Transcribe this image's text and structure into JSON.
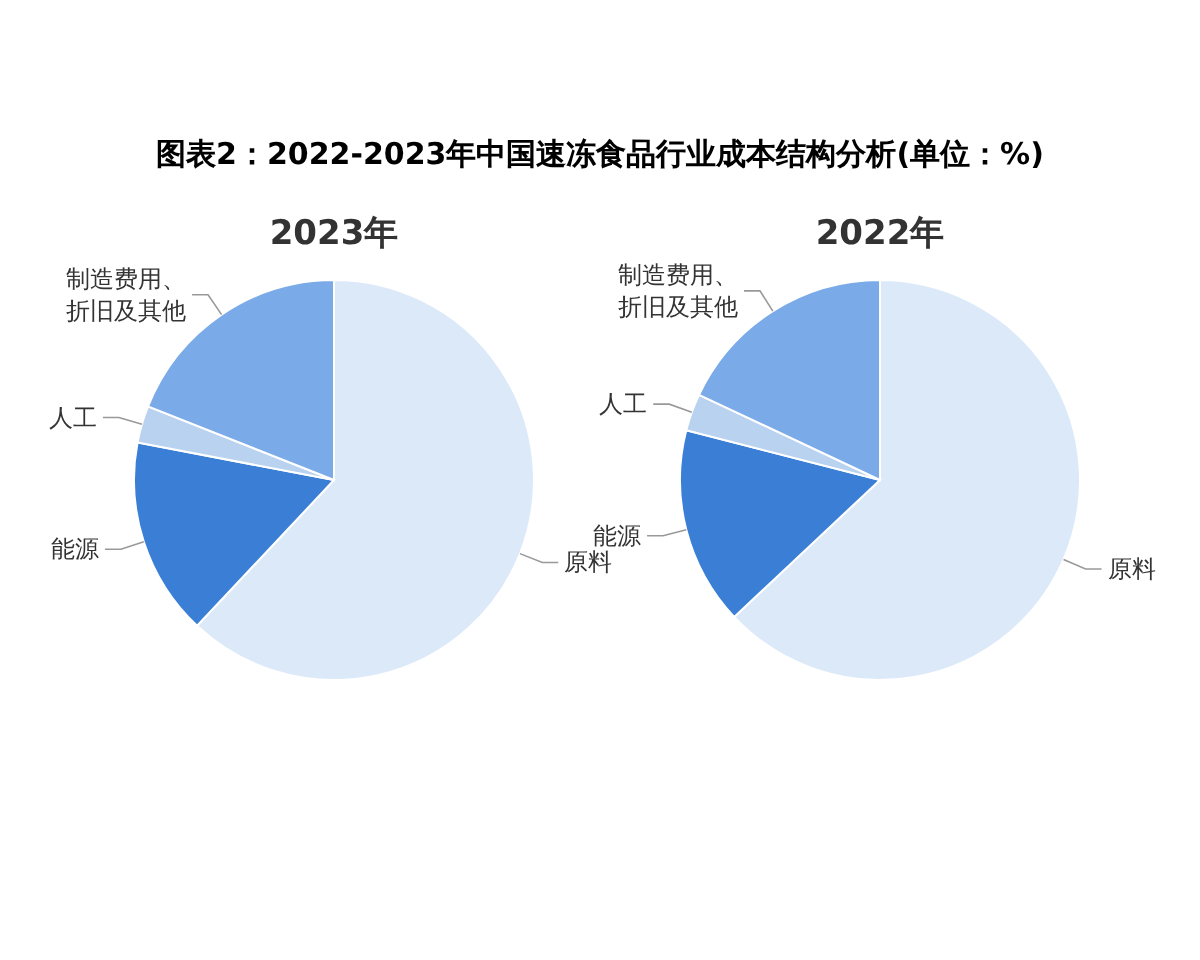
{
  "chart_data": [
    {
      "type": "pie",
      "title": "图表2：2022-2023年中国速冻食品行业成本结构分析(单位：%)",
      "subtitle": "2023年",
      "categories": [
        "原料",
        "能源",
        "人工",
        "制造费用、折旧及其他"
      ],
      "values": [
        62,
        16,
        3,
        19
      ],
      "colors": [
        "#dce9f9",
        "#3a7fd5",
        "#b8d2f0",
        "#7aaae8"
      ]
    },
    {
      "type": "pie",
      "title": "2022年",
      "categories": [
        "原料",
        "能源",
        "人工",
        "制造费用、折旧及其他"
      ],
      "values": [
        63,
        16,
        3,
        18
      ],
      "colors": [
        "#dce9f9",
        "#3a7fd5",
        "#b8d2f0",
        "#7aaae8"
      ]
    }
  ]
}
